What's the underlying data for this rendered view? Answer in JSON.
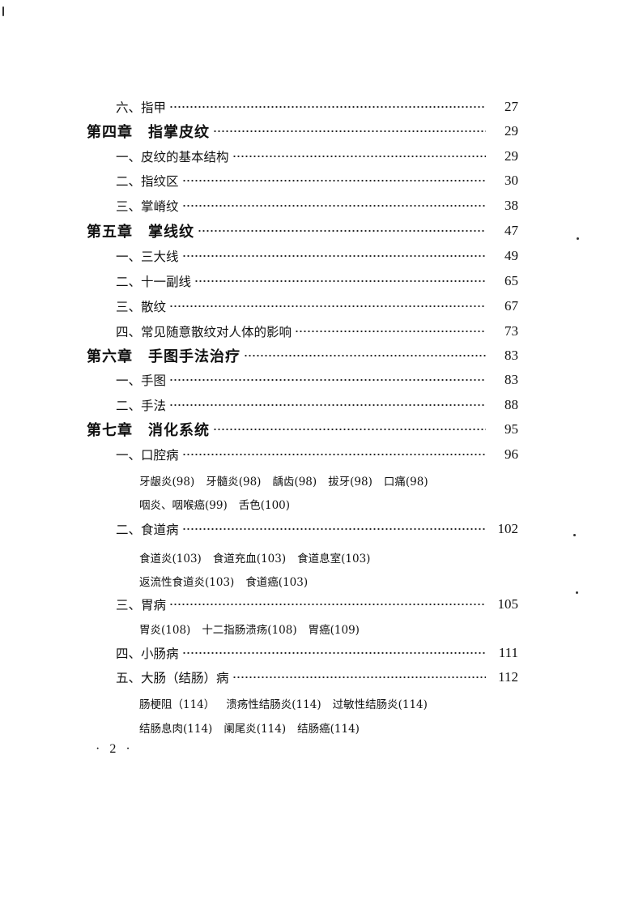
{
  "toc": [
    {
      "type": "section",
      "label": "六、指甲",
      "page": "27"
    },
    {
      "type": "chapter",
      "label": "第四章　指掌皮纹",
      "page": "29"
    },
    {
      "type": "section",
      "label": "一、皮纹的基本结构",
      "page": "29"
    },
    {
      "type": "section",
      "label": "二、指纹区",
      "page": "30"
    },
    {
      "type": "section",
      "label": "三、掌嵴纹",
      "page": "38"
    },
    {
      "type": "chapter",
      "label": "第五章　掌线纹",
      "page": "47"
    },
    {
      "type": "section",
      "label": "一、三大线",
      "page": "49"
    },
    {
      "type": "section",
      "label": "二、十一副线",
      "page": "65"
    },
    {
      "type": "section",
      "label": "三、散纹",
      "page": "67"
    },
    {
      "type": "section",
      "label": "四、常见随意散纹对人体的影响",
      "page": "73"
    },
    {
      "type": "chapter",
      "label": "第六章　手图手法治疗",
      "page": "83"
    },
    {
      "type": "section",
      "label": "一、手图",
      "page": "83"
    },
    {
      "type": "section",
      "label": "二、手法",
      "page": "88"
    },
    {
      "type": "chapter",
      "label": "第七章　消化系统",
      "page": "95"
    },
    {
      "type": "section",
      "label": "一、口腔病",
      "page": "96"
    },
    {
      "type": "sub",
      "items": [
        "牙龈炎(98)",
        "牙髓炎(98)",
        "龋齿(98)",
        "拔牙(98)",
        "口痛(98)"
      ]
    },
    {
      "type": "sub",
      "items": [
        "咽炎、咽喉癌(99)",
        "舌色(100)"
      ]
    },
    {
      "type": "section",
      "label": "二、食道病",
      "page": "102"
    },
    {
      "type": "sub",
      "items": [
        "食道炎(103)",
        "食道充血(103)",
        "食道息室(103)"
      ]
    },
    {
      "type": "sub",
      "items": [
        "返流性食道炎(103)",
        "食道癌(103)"
      ]
    },
    {
      "type": "section",
      "label": "三、胃病",
      "page": "105"
    },
    {
      "type": "sub",
      "items": [
        "胃炎(108)",
        "十二指肠溃疡(108)",
        "胃癌(109)"
      ]
    },
    {
      "type": "section",
      "label": "四、小肠病",
      "page": "111"
    },
    {
      "type": "section",
      "label": "五、大肠（结肠）病",
      "page": "112"
    },
    {
      "type": "sub",
      "items": [
        "肠梗阻（114）",
        "溃疡性结肠炎(114)",
        "过敏性结肠炎(114)"
      ]
    },
    {
      "type": "sub",
      "items": [
        "结肠息肉(114)",
        "阑尾炎(114)",
        "结肠癌(114)"
      ]
    }
  ],
  "footer": {
    "page_number": "· 2 ·"
  }
}
